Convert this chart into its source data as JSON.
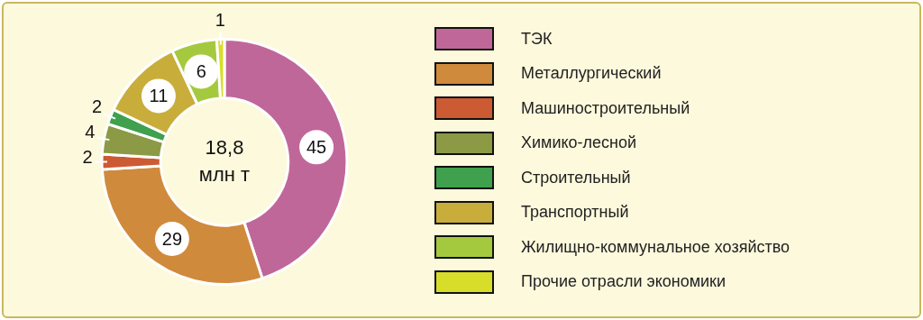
{
  "chart_data": {
    "type": "donut",
    "categories": [
      "ТЭК",
      "Металлургический",
      "Машиностроительный",
      "Химико-лесной",
      "Строительный",
      "Транспортный",
      "Жилищно-коммунальное хозяйство",
      "Прочие отрасли экономики"
    ],
    "values": [
      45,
      29,
      2,
      4,
      2,
      11,
      6,
      1
    ],
    "colors": [
      "#c0679a",
      "#d08a3c",
      "#cc5a33",
      "#8c9a45",
      "#3fa04d",
      "#c9ad3b",
      "#a5c93e",
      "#d8dd2a"
    ],
    "annotations": [
      "18,8 млн т"
    ],
    "data_labels": true,
    "legend": "right"
  }
}
